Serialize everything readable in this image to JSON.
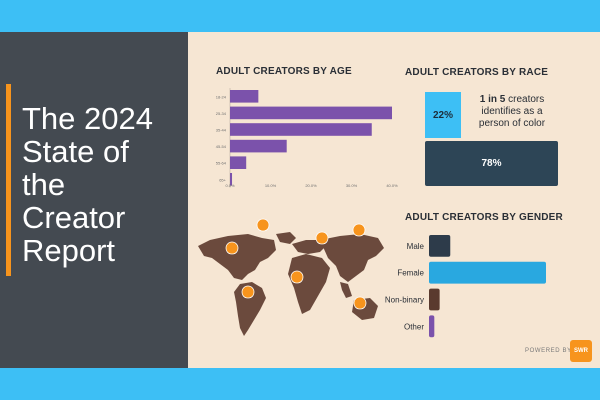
{
  "title_lines": [
    "The 2024",
    "State of",
    "the",
    "Creator",
    "Report"
  ],
  "colors": {
    "purple": "#7b52ab",
    "blue": "#29a8e0",
    "dark": "#2d3b4a",
    "brown": "#5a3a2e",
    "orange": "#f7941d"
  },
  "chart_data": [
    {
      "type": "bar",
      "orientation": "horizontal",
      "title": "ADULT CREATORS BY AGE",
      "categories": [
        "18-24",
        "25-34",
        "35-44",
        "45-54",
        "55-64",
        "65+"
      ],
      "values": [
        7,
        40,
        35,
        14,
        4,
        0.5
      ],
      "xlim": [
        0,
        40
      ],
      "xticks": [
        "0.0%",
        "10.0%",
        "20.0%",
        "30.0%",
        "40.0%"
      ]
    },
    {
      "type": "table",
      "title": "ADULT CREATORS BY RACE",
      "values": [
        {
          "label": "22%",
          "value": 22
        },
        {
          "label": "78%",
          "value": 78
        }
      ],
      "highlight": "1 in 5",
      "note": "creators identifies as a person of color"
    },
    {
      "type": "bar",
      "orientation": "horizontal",
      "title": "ADULT CREATORS BY GENDER",
      "categories": [
        "Male",
        "Female",
        "Non-binary",
        "Other"
      ],
      "values": [
        20,
        110,
        10,
        5
      ]
    }
  ],
  "footer": {
    "powered_by": "POWERED BY",
    "logo_text": "SWR"
  }
}
